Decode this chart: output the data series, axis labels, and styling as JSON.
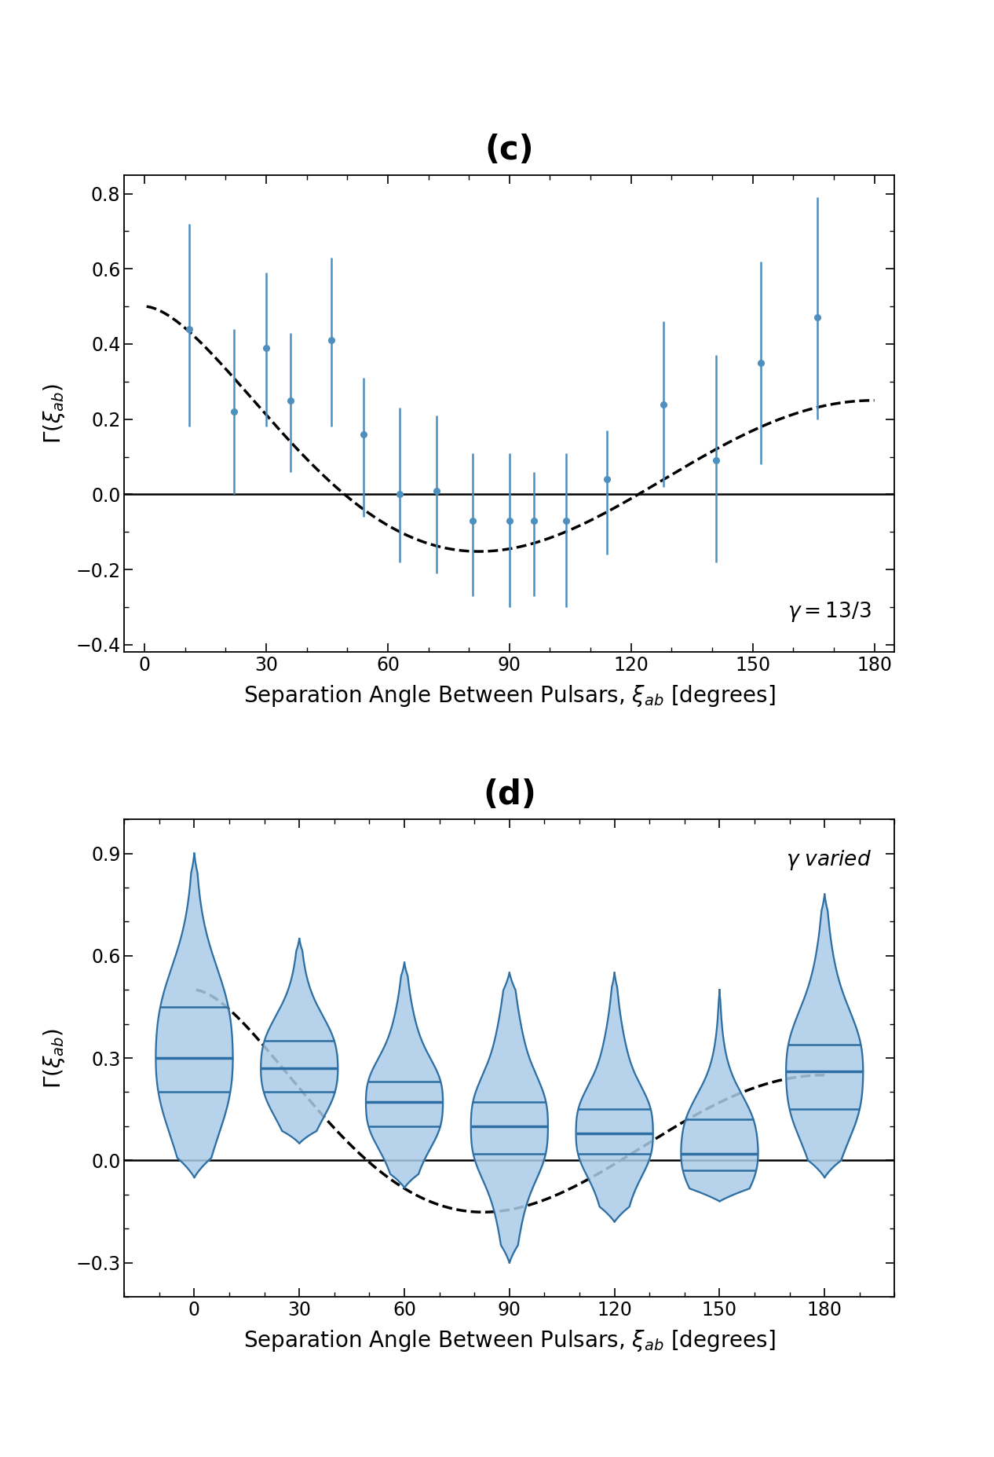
{
  "panel_c": {
    "title": "(c)",
    "xlabel": "Separation Angle Between Pulsars, $\\xi_{ab}$ [degrees]",
    "ylabel": "$\\Gamma(\\xi_{ab})$",
    "xlim": [
      -5,
      185
    ],
    "ylim": [
      -0.42,
      0.85
    ],
    "xticks": [
      0,
      30,
      60,
      90,
      120,
      150,
      180
    ],
    "yticks": [
      -0.4,
      -0.2,
      0.0,
      0.2,
      0.4,
      0.6,
      0.8
    ],
    "annotation": "$\\gamma = 13/3$",
    "data_x": [
      11,
      22,
      30,
      36,
      46,
      54,
      63,
      72,
      81,
      90,
      96,
      104,
      114,
      128,
      141,
      152,
      166
    ],
    "data_y": [
      0.44,
      0.22,
      0.39,
      0.25,
      0.41,
      0.16,
      0.0,
      0.01,
      -0.07,
      -0.07,
      -0.07,
      -0.07,
      0.04,
      0.24,
      0.09,
      0.35,
      0.47
    ],
    "err_lo": [
      0.26,
      0.22,
      0.21,
      0.19,
      0.23,
      0.22,
      0.18,
      0.22,
      0.2,
      0.23,
      0.2,
      0.23,
      0.2,
      0.22,
      0.27,
      0.27,
      0.27
    ],
    "err_hi": [
      0.28,
      0.22,
      0.2,
      0.18,
      0.22,
      0.15,
      0.23,
      0.2,
      0.18,
      0.18,
      0.13,
      0.18,
      0.13,
      0.22,
      0.28,
      0.27,
      0.32
    ],
    "point_color": "#4d8fbe",
    "line_color": "#4d8fbe"
  },
  "panel_d": {
    "title": "(d)",
    "xlabel": "Separation Angle Between Pulsars, $\\xi_{ab}$ [degrees]",
    "ylabel": "$\\Gamma(\\xi_{ab})$",
    "xlim": [
      -20,
      200
    ],
    "ylim": [
      -0.4,
      1.0
    ],
    "xticks": [
      0,
      30,
      60,
      90,
      120,
      150,
      180
    ],
    "yticks": [
      -0.3,
      0.0,
      0.3,
      0.6,
      0.9
    ],
    "annotation": "$\\gamma$ varied",
    "violin_x": [
      0,
      30,
      60,
      90,
      120,
      150,
      180
    ],
    "violin_lo": [
      -0.05,
      0.05,
      -0.08,
      -0.3,
      -0.18,
      -0.12,
      -0.05
    ],
    "violin_hi": [
      0.9,
      0.65,
      0.58,
      0.55,
      0.55,
      0.5,
      0.78
    ],
    "violin_q1": [
      0.2,
      0.2,
      0.1,
      0.02,
      0.02,
      -0.03,
      0.15
    ],
    "violin_median": [
      0.3,
      0.27,
      0.17,
      0.1,
      0.08,
      0.02,
      0.26
    ],
    "violin_q3": [
      0.45,
      0.35,
      0.23,
      0.17,
      0.15,
      0.12,
      0.34
    ],
    "violin_hw": 11,
    "fill_color": "#aacce8",
    "line_color": "#2e6fa3"
  }
}
